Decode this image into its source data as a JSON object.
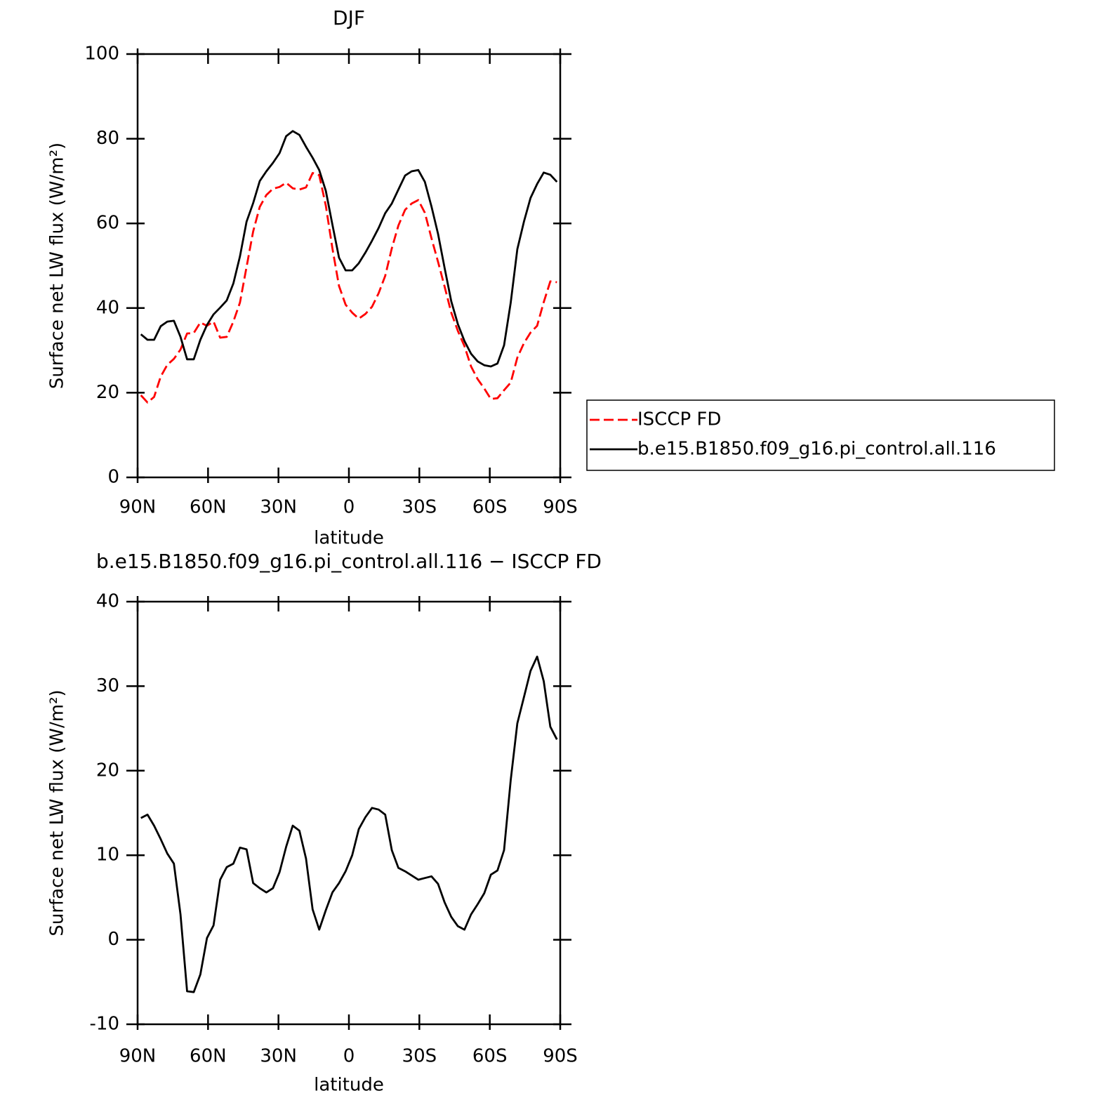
{
  "chart_data": [
    {
      "type": "line",
      "title": "DJF",
      "ylabel": "Surface net LW flux (W/m²)",
      "xlabel": "latitude",
      "x": [
        88.59,
        85.78,
        82.97,
        80.16,
        77.34,
        74.53,
        71.72,
        68.91,
        66.09,
        63.28,
        60.47,
        57.66,
        54.84,
        52.03,
        49.22,
        46.41,
        43.59,
        40.78,
        37.97,
        35.16,
        32.34,
        29.53,
        26.72,
        23.91,
        21.09,
        18.28,
        15.47,
        12.66,
        9.84,
        7.03,
        4.22,
        1.41,
        -1.41,
        -4.22,
        -7.03,
        -9.84,
        -12.66,
        -15.47,
        -18.28,
        -21.09,
        -23.91,
        -26.72,
        -29.53,
        -32.34,
        -35.16,
        -37.97,
        -40.78,
        -43.59,
        -46.41,
        -49.22,
        -52.03,
        -54.84,
        -57.66,
        -60.47,
        -63.28,
        -66.09,
        -68.91,
        -71.72,
        -74.53,
        -77.34,
        -80.16,
        -82.97,
        -85.78,
        -88.59
      ],
      "series": [
        {
          "name": "ISCCP FD",
          "color": "#ff0000",
          "dash": true,
          "values": [
            19.4,
            17.7,
            19.0,
            23.8,
            26.6,
            28.0,
            30.2,
            34.0,
            34.1,
            36.6,
            35.8,
            36.8,
            33.0,
            33.2,
            36.8,
            41.3,
            49.7,
            58.1,
            63.9,
            66.7,
            68.2,
            68.6,
            69.6,
            68.3,
            68.0,
            68.5,
            71.9,
            71.4,
            64.2,
            54.1,
            45.2,
            40.8,
            38.9,
            37.5,
            38.6,
            40.3,
            43.5,
            47.6,
            54.1,
            59.5,
            63.2,
            64.7,
            65.5,
            62.5,
            56.5,
            50.9,
            45.0,
            38.9,
            34.6,
            31.0,
            26.2,
            23.2,
            21.0,
            18.5,
            18.7,
            20.6,
            22.4,
            28.3,
            31.7,
            34.2,
            35.8,
            41.4,
            46.3,
            46.1
          ]
        },
        {
          "name": "b.e15.B1850.f09_g16.pi_control.all.116",
          "color": "#000000",
          "dash": false,
          "values": [
            33.8,
            32.5,
            32.5,
            35.7,
            36.8,
            37.0,
            33.2,
            27.9,
            27.9,
            32.5,
            36.0,
            38.5,
            40.1,
            41.8,
            45.8,
            52.2,
            60.4,
            64.8,
            70.0,
            72.3,
            74.3,
            76.6,
            80.6,
            81.8,
            80.9,
            78.1,
            75.5,
            72.6,
            67.7,
            59.7,
            51.9,
            48.9,
            48.9,
            50.6,
            53.1,
            55.9,
            58.9,
            62.4,
            64.7,
            68.0,
            71.3,
            72.3,
            72.6,
            69.8,
            64.0,
            57.5,
            49.4,
            41.6,
            36.2,
            32.2,
            29.2,
            27.4,
            26.5,
            26.2,
            26.9,
            31.2,
            41.3,
            53.9,
            60.4,
            66.0,
            69.3,
            72.0,
            71.5,
            69.8
          ]
        }
      ],
      "xlim": [
        90,
        -90
      ],
      "xticks": [
        {
          "value": 90,
          "label": "90N"
        },
        {
          "value": 60,
          "label": "60N"
        },
        {
          "value": 30,
          "label": "30N"
        },
        0,
        {
          "value": -30,
          "label": "30S"
        },
        {
          "value": -60,
          "label": "60S"
        },
        {
          "value": -90,
          "label": "90S"
        }
      ],
      "ylim": [
        0,
        100
      ],
      "yticks": [
        0,
        20,
        40,
        60,
        80,
        100
      ],
      "legend": "right"
    },
    {
      "type": "line",
      "title": "b.e15.B1850.f09_g16.pi_control.all.116 − ISCCP FD",
      "ylabel": "Surface net LW flux (W/m²)",
      "xlabel": "latitude",
      "color": "#000000",
      "x": [
        88.59,
        85.78,
        82.97,
        80.16,
        77.34,
        74.53,
        71.72,
        68.91,
        66.09,
        63.28,
        60.47,
        57.66,
        54.84,
        52.03,
        49.22,
        46.41,
        43.59,
        40.78,
        37.97,
        35.16,
        32.34,
        29.53,
        26.72,
        23.91,
        21.09,
        18.28,
        15.47,
        12.66,
        9.84,
        7.03,
        4.22,
        1.41,
        -1.41,
        -4.22,
        -7.03,
        -9.84,
        -12.66,
        -15.47,
        -18.28,
        -21.09,
        -23.91,
        -26.72,
        -29.53,
        -32.34,
        -35.16,
        -37.97,
        -40.78,
        -43.59,
        -46.41,
        -49.22,
        -52.03,
        -54.84,
        -57.66,
        -60.47,
        -63.28,
        -66.09,
        -68.91,
        -71.72,
        -74.53,
        -77.34,
        -80.16,
        -82.97,
        -85.78,
        -88.59
      ],
      "values": [
        14.4,
        14.8,
        13.5,
        11.9,
        10.2,
        9.0,
        3.0,
        -6.1,
        -6.2,
        -4.1,
        0.2,
        1.7,
        7.1,
        8.6,
        9.0,
        10.9,
        10.7,
        6.7,
        6.1,
        5.6,
        6.1,
        8.0,
        11.0,
        13.5,
        12.9,
        9.6,
        3.6,
        1.2,
        3.5,
        5.6,
        6.7,
        8.1,
        10.0,
        13.1,
        14.5,
        15.6,
        15.4,
        14.8,
        10.6,
        8.5,
        8.1,
        7.6,
        7.1,
        7.3,
        7.5,
        6.6,
        4.4,
        2.7,
        1.6,
        1.2,
        3.0,
        4.2,
        5.5,
        7.7,
        8.2,
        10.6,
        18.9,
        25.6,
        28.7,
        31.8,
        33.5,
        30.6,
        25.2,
        23.7
      ],
      "xlim": [
        90,
        -90
      ],
      "xticks": [
        {
          "value": 90,
          "label": "90N"
        },
        {
          "value": 60,
          "label": "60N"
        },
        {
          "value": 30,
          "label": "30N"
        },
        0,
        {
          "value": -30,
          "label": "30S"
        },
        {
          "value": -60,
          "label": "60S"
        },
        {
          "value": -90,
          "label": "90S"
        }
      ],
      "ylim": [
        -10,
        40
      ],
      "yticks": [
        -10,
        0,
        10,
        20,
        30,
        40
      ]
    }
  ]
}
